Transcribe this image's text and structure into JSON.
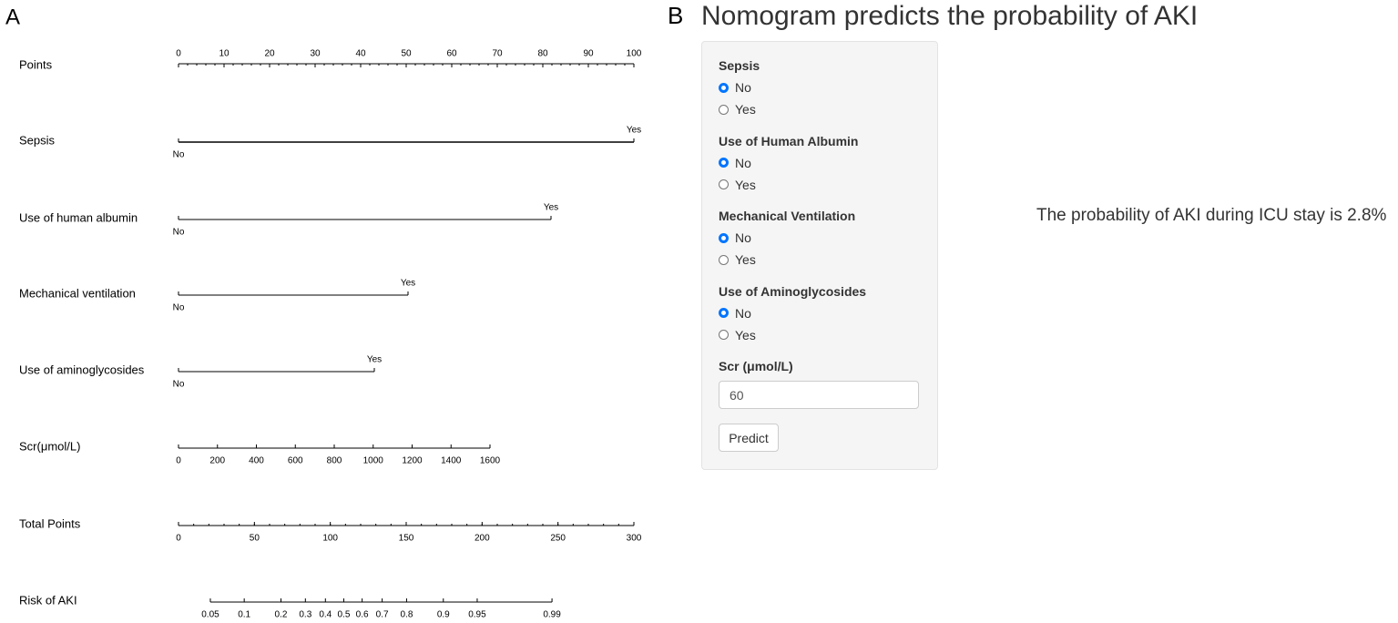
{
  "panel_a": {
    "label": "A",
    "rows": [
      {
        "label": "Points",
        "ticks": [
          0,
          10,
          20,
          30,
          40,
          50,
          60,
          70,
          80,
          90,
          100
        ]
      },
      {
        "label": "Sepsis",
        "levels": [
          "No",
          "Yes"
        ]
      },
      {
        "label": "Use of human albumin",
        "levels": [
          "No",
          "Yes"
        ]
      },
      {
        "label": "Mechanical ventilation",
        "levels": [
          "No",
          "Yes"
        ]
      },
      {
        "label": "Use of aminoglycosides",
        "levels": [
          "No",
          "Yes"
        ]
      },
      {
        "label": "Scr(μmol/L)",
        "ticks": [
          0,
          200,
          400,
          600,
          800,
          1000,
          1200,
          1400,
          1600
        ]
      },
      {
        "label": "Total Points",
        "ticks": [
          0,
          50,
          100,
          150,
          200,
          250,
          300
        ]
      },
      {
        "label": "Risk of AKI",
        "ticks": [
          0.05,
          0.1,
          0.2,
          0.3,
          0.4,
          0.5,
          0.6,
          0.7,
          0.8,
          0.9,
          0.95,
          0.99
        ]
      }
    ]
  },
  "panel_b": {
    "label": "B",
    "title": "Nomogram predicts the probability of AKI",
    "fields": [
      {
        "label": "Sepsis",
        "options": [
          "No",
          "Yes"
        ],
        "selected": "No"
      },
      {
        "label": "Use of Human Albumin",
        "options": [
          "No",
          "Yes"
        ],
        "selected": "No"
      },
      {
        "label": "Mechanical Ventilation",
        "options": [
          "No",
          "Yes"
        ],
        "selected": "No"
      },
      {
        "label": "Use of Aminoglycosides",
        "options": [
          "No",
          "Yes"
        ],
        "selected": "No"
      }
    ],
    "input": {
      "label": "Scr (μmol/L)",
      "value": "60"
    },
    "button": "Predict",
    "result": "The probability of AKI during ICU stay is 2.8%"
  }
}
